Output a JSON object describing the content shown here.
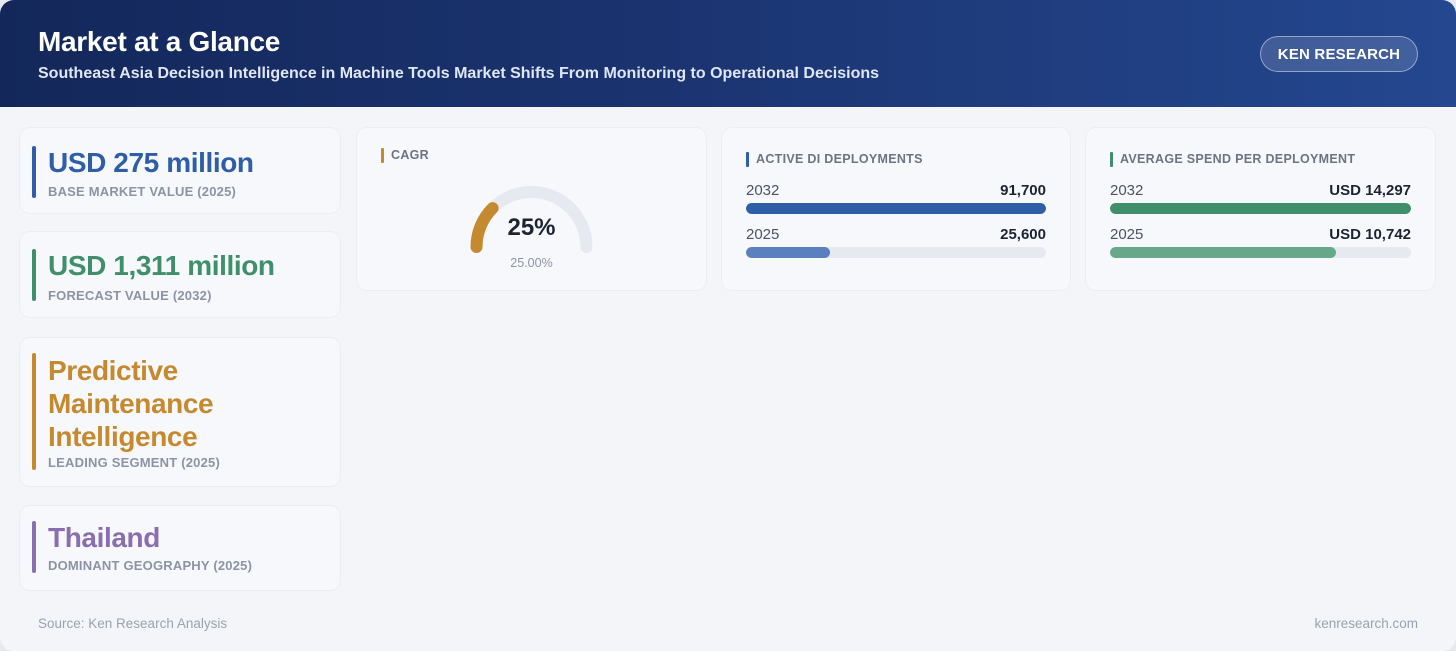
{
  "header": {
    "title": "Market at a Glance",
    "subtitle": "Southeast Asia Decision Intelligence in Machine Tools Market Shifts From Monitoring to Operational Decisions",
    "brand": "KEN RESEARCH"
  },
  "kpis": [
    {
      "value": "USD 275 million",
      "label": "BASE MARKET VALUE (2025)",
      "color": "#2f5ea8"
    },
    {
      "value": "USD 1,311 million",
      "label": "FORECAST VALUE (2032)",
      "color": "#3e8f6a"
    },
    {
      "value_lines": [
        "Predictive",
        "Maintenance",
        "Intelligence"
      ],
      "label": "LEADING SEGMENT (2025)",
      "color": "#c58a30"
    },
    {
      "value": "Thailand",
      "label": "DOMINANT GEOGRAPHY (2025)",
      "color": "#8a6fb0"
    }
  ],
  "cagr": {
    "title": "CAGR",
    "display": "25%",
    "sub": "25.00%",
    "percent": 25,
    "color": "#c58a30",
    "track_color": "#e6e9ef"
  },
  "chart_data": [
    {
      "type": "bar",
      "title": "ACTIVE DI DEPLOYMENTS",
      "categories": [
        "2032",
        "2025"
      ],
      "values": [
        91700,
        25600
      ],
      "value_labels": [
        "91,700",
        "25,600"
      ],
      "colors": [
        "#2f5ea8",
        "#5b80c0"
      ],
      "accent": "#2f5ea8"
    },
    {
      "type": "bar",
      "title": "AVERAGE SPEND PER DEPLOYMENT",
      "categories": [
        "2032",
        "2025"
      ],
      "values": [
        14297,
        10742
      ],
      "value_labels": [
        "USD 14,297",
        "USD 10,742"
      ],
      "colors": [
        "#3e8f6a",
        "#67a88a"
      ],
      "accent": "#3e8f6a"
    }
  ],
  "footer": {
    "source": "Source: Ken Research Analysis",
    "site": "kenresearch.com"
  }
}
